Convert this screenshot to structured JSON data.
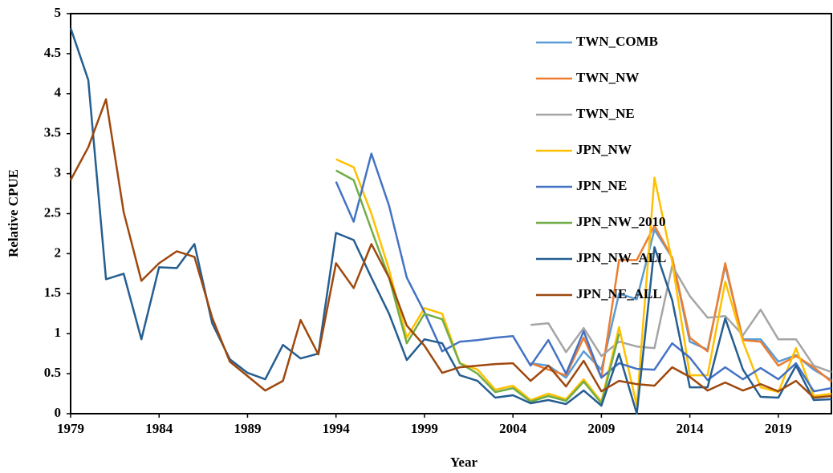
{
  "chart_data": {
    "type": "line",
    "xlabel": "Year",
    "ylabel": "Relative CPUE",
    "x": [
      1979,
      1980,
      1981,
      1982,
      1983,
      1984,
      1985,
      1986,
      1987,
      1988,
      1989,
      1990,
      1991,
      1992,
      1993,
      1994,
      1995,
      1996,
      1997,
      1998,
      1999,
      2000,
      2001,
      2002,
      2003,
      2004,
      2005,
      2006,
      2007,
      2008,
      2009,
      2010,
      2011,
      2012,
      2013,
      2014,
      2015,
      2016,
      2017,
      2018,
      2019,
      2020,
      2021,
      2022
    ],
    "xlim": [
      1979,
      2022
    ],
    "xticks": [
      1979,
      1984,
      1989,
      1994,
      1999,
      2004,
      2009,
      2014,
      2019
    ],
    "ylim": [
      0,
      5
    ],
    "yticks": [
      0,
      0.5,
      1,
      1.5,
      2,
      2.5,
      3,
      3.5,
      4,
      4.5,
      5
    ],
    "legend": "upper-right",
    "series": [
      {
        "name": "TWN_COMB",
        "color": "#5b9bd5",
        "values": [
          null,
          null,
          null,
          null,
          null,
          null,
          null,
          null,
          null,
          null,
          null,
          null,
          null,
          null,
          null,
          null,
          null,
          null,
          null,
          null,
          null,
          null,
          null,
          null,
          null,
          null,
          0.63,
          0.6,
          0.45,
          0.78,
          0.55,
          1.5,
          1.43,
          2.3,
          1.95,
          0.9,
          0.8,
          1.85,
          0.93,
          0.93,
          0.65,
          0.73,
          0.55,
          0.42
        ]
      },
      {
        "name": "TWN_NW",
        "color": "#ed7d31",
        "values": [
          null,
          null,
          null,
          null,
          null,
          null,
          null,
          null,
          null,
          null,
          null,
          null,
          null,
          null,
          null,
          null,
          null,
          null,
          null,
          null,
          null,
          null,
          null,
          null,
          null,
          null,
          0.63,
          0.55,
          0.48,
          0.95,
          0.45,
          1.92,
          1.92,
          2.35,
          1.95,
          0.95,
          0.78,
          1.88,
          0.92,
          0.9,
          0.6,
          0.72,
          0.58,
          0.4
        ]
      },
      {
        "name": "TWN_NE",
        "color": "#a5a5a5",
        "values": [
          null,
          null,
          null,
          null,
          null,
          null,
          null,
          null,
          null,
          null,
          null,
          null,
          null,
          null,
          null,
          null,
          null,
          null,
          null,
          null,
          null,
          null,
          null,
          null,
          null,
          null,
          1.11,
          1.13,
          0.77,
          1.07,
          0.72,
          0.9,
          0.84,
          0.82,
          1.85,
          1.47,
          1.2,
          1.22,
          0.98,
          1.3,
          0.93,
          0.93,
          0.6,
          0.52
        ]
      },
      {
        "name": "JPN_NW",
        "color": "#ffc000",
        "values": [
          null,
          null,
          null,
          null,
          null,
          null,
          null,
          null,
          null,
          null,
          null,
          null,
          null,
          null,
          null,
          3.18,
          3.08,
          2.5,
          1.8,
          0.95,
          1.32,
          1.25,
          0.63,
          0.55,
          0.3,
          0.35,
          0.17,
          0.25,
          0.18,
          0.43,
          0.15,
          1.08,
          0.1,
          2.95,
          1.9,
          0.48,
          0.48,
          1.65,
          0.9,
          0.33,
          0.27,
          0.82,
          0.22,
          0.25
        ]
      },
      {
        "name": "JPN_NE",
        "color": "#4472c4",
        "values": [
          null,
          null,
          null,
          null,
          null,
          null,
          null,
          null,
          null,
          null,
          null,
          null,
          null,
          null,
          null,
          2.9,
          2.4,
          3.25,
          2.6,
          1.7,
          1.27,
          0.78,
          0.9,
          0.92,
          0.95,
          0.97,
          0.6,
          0.92,
          0.5,
          1.03,
          0.45,
          0.63,
          0.56,
          0.55,
          0.88,
          0.7,
          0.42,
          0.58,
          0.43,
          0.57,
          0.43,
          0.63,
          0.28,
          0.32
        ]
      },
      {
        "name": "JPN_NW_2010",
        "color": "#70ad47",
        "values": [
          null,
          null,
          null,
          null,
          null,
          null,
          null,
          null,
          null,
          null,
          null,
          null,
          null,
          null,
          null,
          3.04,
          2.92,
          2.3,
          1.7,
          0.88,
          1.25,
          1.18,
          0.63,
          0.5,
          0.27,
          0.32,
          0.15,
          0.22,
          0.16,
          0.4,
          0.13,
          1.0,
          null,
          null,
          null,
          null,
          null,
          null,
          null,
          null,
          null,
          null,
          null,
          null
        ]
      },
      {
        "name": "JPN_NW_ALL",
        "color": "#255e91",
        "values": [
          4.82,
          4.17,
          1.68,
          1.75,
          0.93,
          1.83,
          1.82,
          2.12,
          1.13,
          0.68,
          0.51,
          0.43,
          0.86,
          0.69,
          0.75,
          2.26,
          2.17,
          1.7,
          1.25,
          0.67,
          0.93,
          0.88,
          0.48,
          0.41,
          0.2,
          0.23,
          0.13,
          0.17,
          0.12,
          0.29,
          0.1,
          0.75,
          0.0,
          2.08,
          1.42,
          0.33,
          0.33,
          1.19,
          0.55,
          0.21,
          0.2,
          0.6,
          0.17,
          0.18
        ]
      },
      {
        "name": "JPN_NE_ALL",
        "color": "#9e480e",
        "values": [
          2.92,
          3.33,
          3.93,
          2.52,
          1.66,
          1.88,
          2.03,
          1.96,
          1.2,
          0.65,
          0.47,
          0.29,
          0.41,
          1.17,
          0.74,
          1.88,
          1.57,
          2.12,
          1.7,
          1.1,
          0.85,
          0.51,
          0.58,
          0.6,
          0.62,
          0.63,
          0.41,
          0.6,
          0.34,
          0.66,
          0.28,
          0.41,
          0.37,
          0.35,
          0.58,
          0.46,
          0.29,
          0.39,
          0.29,
          0.37,
          0.28,
          0.41,
          0.2,
          0.22
        ]
      }
    ]
  }
}
